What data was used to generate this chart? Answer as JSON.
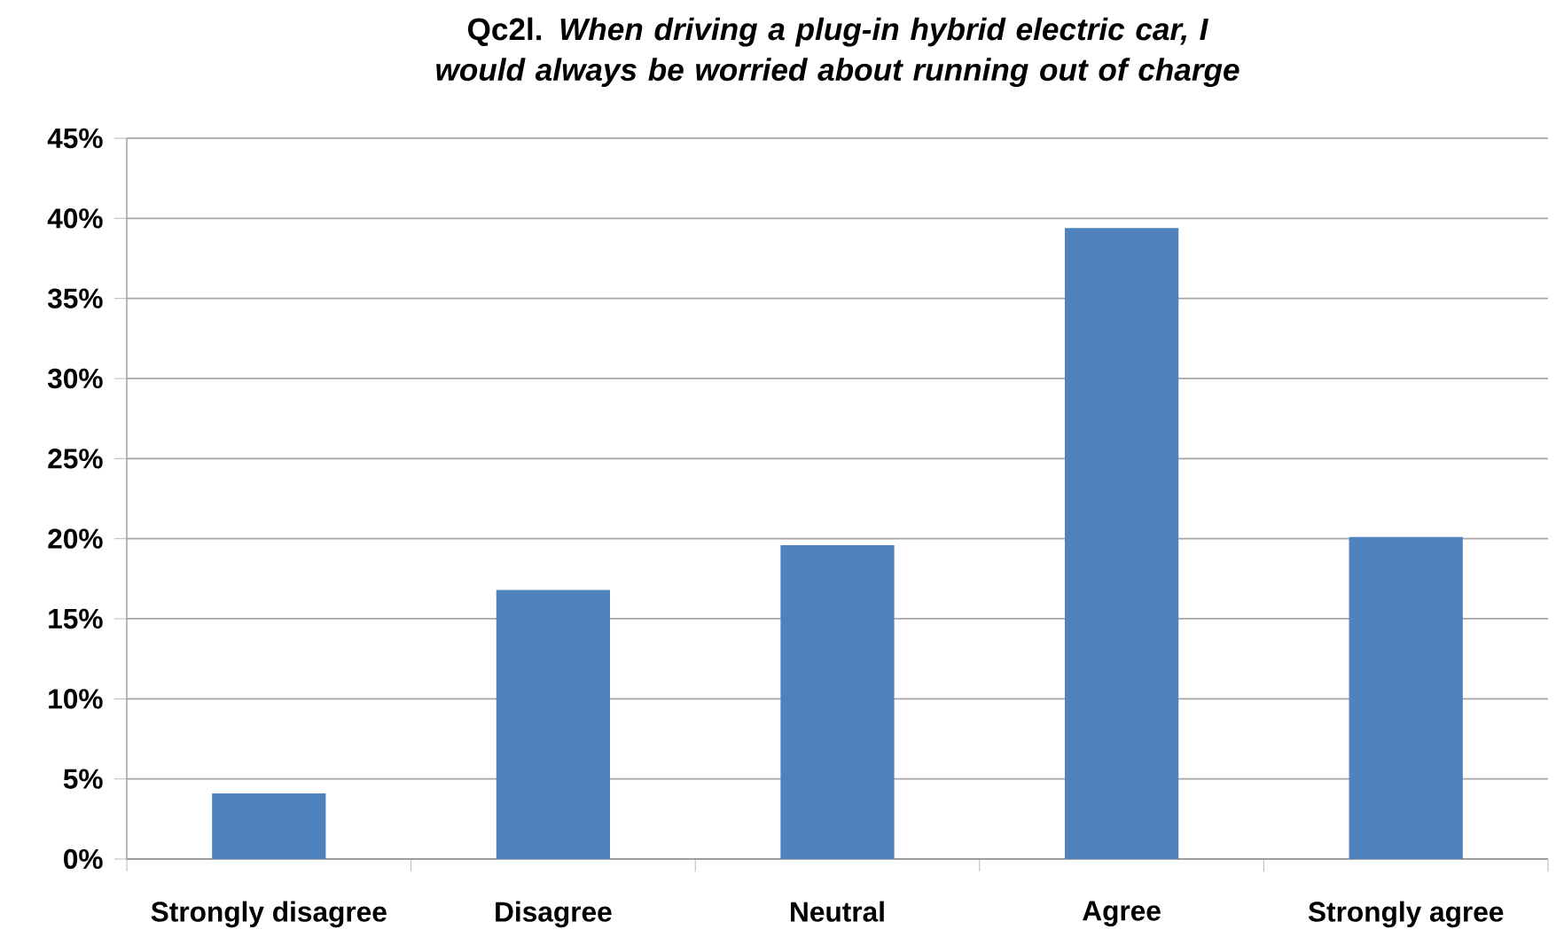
{
  "chart_data": {
    "type": "bar",
    "title": "Qc2l. *When driving a plug-in hybrid electric car, I would always be worried about running out of charge*",
    "categories": [
      "Strongly disagree",
      "Disagree",
      "Neutral",
      "Agree",
      "Strongly agree"
    ],
    "values": [
      4.1,
      16.8,
      19.6,
      39.4,
      20.1
    ],
    "color": "#4f81bd",
    "ylim": [
      0,
      45
    ],
    "yticks": [
      {
        "value": 0,
        "label": "0%"
      },
      {
        "value": 5,
        "label": "5%"
      },
      {
        "value": 10,
        "label": "10%"
      },
      {
        "value": 15,
        "label": "15%"
      },
      {
        "value": 20,
        "label": "20%"
      },
      {
        "value": 25,
        "label": "25%"
      },
      {
        "value": 30,
        "label": "30%"
      },
      {
        "value": 35,
        "label": "35%"
      },
      {
        "value": 40,
        "label": "40%"
      },
      {
        "value": 45,
        "label": "45%"
      }
    ],
    "grid": "y"
  }
}
